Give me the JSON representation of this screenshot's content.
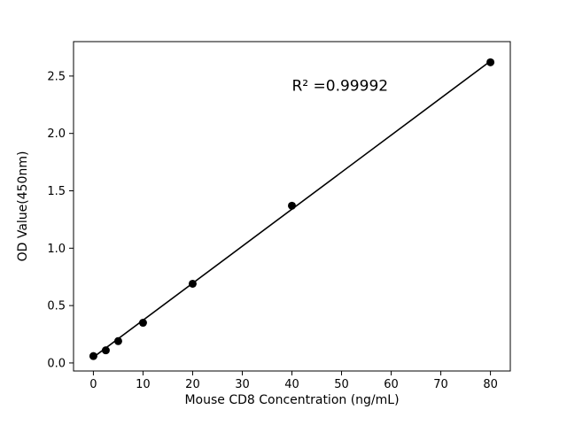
{
  "chart_data": {
    "type": "scatter",
    "title": "",
    "xlabel": "Mouse CD8 Concentration (ng/mL)",
    "ylabel": "OD Value(450nm)",
    "x": [
      0,
      2.5,
      5,
      10,
      20,
      40,
      80
    ],
    "y": [
      0.06,
      0.11,
      0.19,
      0.35,
      0.69,
      1.37,
      2.62
    ],
    "fit_line": {
      "x": [
        0,
        80
      ],
      "y": [
        0.05,
        2.63
      ]
    },
    "annotation": {
      "text": "R² =0.99992",
      "x": 40,
      "y": 2.42
    },
    "xticks": [
      0,
      10,
      20,
      30,
      40,
      50,
      60,
      70,
      80
    ],
    "xtick_labels": [
      "0",
      "10",
      "20",
      "30",
      "40",
      "50",
      "60",
      "70",
      "80"
    ],
    "yticks": [
      0.0,
      0.5,
      1.0,
      1.5,
      2.0,
      2.5
    ],
    "ytick_labels": [
      "0.0",
      "0.5",
      "1.0",
      "1.5",
      "2.0",
      "2.5"
    ],
    "xlim": [
      -4,
      84
    ],
    "ylim": [
      -0.07,
      2.8
    ],
    "grid": false,
    "legend": null,
    "marker_color": "#000000",
    "line_color": "#000000",
    "frame_color": "#000000",
    "background": "#ffffff"
  }
}
